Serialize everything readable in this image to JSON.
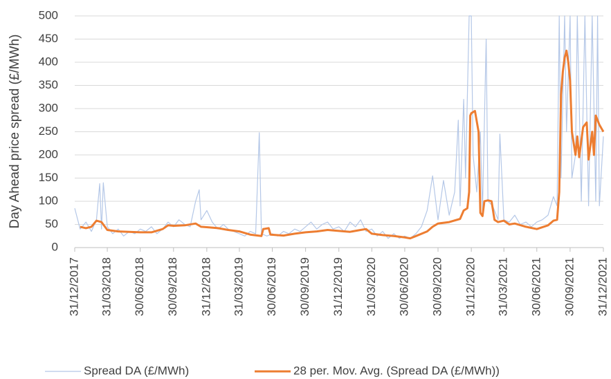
{
  "chart_data": {
    "type": "line",
    "y_label": "Day Ahead price spread (£/MWh)",
    "xlim": [
      "31/12/2017",
      "31/12/2021"
    ],
    "xticks": [
      "31/12/2017",
      "31/03/2018",
      "30/06/2018",
      "30/09/2018",
      "31/12/2018",
      "31/03/2019",
      "30/06/2019",
      "30/09/2019",
      "31/12/2019",
      "31/03/2020",
      "30/06/2020",
      "30/09/2020",
      "31/12/2020",
      "31/03/2021",
      "30/06/2021",
      "30/09/2021",
      "31/12/2021"
    ],
    "ylim": [
      0,
      500
    ],
    "yticks": [
      0,
      50,
      100,
      150,
      200,
      250,
      300,
      350,
      400,
      450,
      500
    ],
    "grid": true,
    "series": [
      {
        "name": "Spread DA (£/MWh)",
        "color": "#b4c7e7",
        "width": 1.2,
        "x": [
          "31/12/2017",
          "15/01/2018",
          "31/01/2018",
          "15/02/2018",
          "01/03/2018",
          "10/03/2018",
          "15/03/2018",
          "20/03/2018",
          "31/03/2018",
          "15/04/2018",
          "30/04/2018",
          "15/05/2018",
          "31/05/2018",
          "15/06/2018",
          "30/06/2018",
          "15/07/2018",
          "31/07/2018",
          "15/08/2018",
          "31/08/2018",
          "15/09/2018",
          "30/09/2018",
          "15/10/2018",
          "31/10/2018",
          "15/11/2018",
          "30/11/2018",
          "10/12/2018",
          "15/12/2018",
          "31/12/2018",
          "15/01/2019",
          "31/01/2019",
          "15/02/2019",
          "28/02/2019",
          "15/03/2019",
          "31/03/2019",
          "15/04/2019",
          "30/04/2019",
          "15/05/2019",
          "25/05/2019",
          "31/05/2019",
          "15/06/2019",
          "30/06/2019",
          "15/07/2019",
          "31/07/2019",
          "15/08/2019",
          "31/08/2019",
          "15/09/2019",
          "30/09/2019",
          "15/10/2019",
          "31/10/2019",
          "15/11/2019",
          "30/11/2019",
          "15/12/2019",
          "31/12/2019",
          "15/01/2020",
          "31/01/2020",
          "15/02/2020",
          "29/02/2020",
          "15/03/2020",
          "31/03/2020",
          "15/04/2020",
          "30/04/2020",
          "15/05/2020",
          "31/05/2020",
          "15/06/2020",
          "30/06/2020",
          "15/07/2020",
          "31/07/2020",
          "15/08/2020",
          "31/08/2020",
          "15/09/2020",
          "30/09/2020",
          "15/10/2020",
          "31/10/2020",
          "15/11/2020",
          "25/11/2020",
          "30/11/2020",
          "10/12/2020",
          "15/12/2020",
          "25/12/2020",
          "31/12/2020",
          "05/01/2021",
          "15/01/2021",
          "25/01/2021",
          "31/01/2021",
          "10/02/2021",
          "15/02/2021",
          "28/02/2021",
          "15/03/2021",
          "20/03/2021",
          "31/03/2021",
          "15/04/2021",
          "30/04/2021",
          "15/05/2021",
          "31/05/2021",
          "15/06/2021",
          "30/06/2021",
          "15/07/2021",
          "31/07/2021",
          "15/08/2021",
          "25/08/2021",
          "31/08/2021",
          "05/09/2021",
          "15/09/2021",
          "20/09/2021",
          "30/09/2021",
          "05/10/2021",
          "15/10/2021",
          "20/10/2021",
          "31/10/2021",
          "10/11/2021",
          "20/11/2021",
          "30/11/2021",
          "10/12/2021",
          "15/12/2021",
          "20/12/2021",
          "31/12/2021"
        ],
        "values": [
          85,
          40,
          55,
          35,
          60,
          138,
          40,
          140,
          45,
          30,
          40,
          25,
          35,
          30,
          40,
          35,
          45,
          30,
          40,
          55,
          45,
          60,
          50,
          45,
          100,
          125,
          60,
          80,
          55,
          40,
          50,
          40,
          35,
          30,
          25,
          35,
          30,
          248,
          30,
          25,
          30,
          25,
          35,
          30,
          40,
          35,
          45,
          55,
          40,
          50,
          55,
          40,
          45,
          35,
          55,
          45,
          60,
          35,
          40,
          25,
          35,
          20,
          30,
          20,
          25,
          20,
          30,
          45,
          80,
          155,
          60,
          145,
          70,
          120,
          275,
          90,
          320,
          150,
          500,
          500,
          200,
          120,
          250,
          80,
          450,
          100,
          90,
          60,
          245,
          60,
          55,
          70,
          50,
          55,
          45,
          55,
          60,
          70,
          110,
          90,
          500,
          150,
          500,
          250,
          500,
          150,
          200,
          500,
          100,
          500,
          90,
          500,
          100,
          500,
          90,
          240
        ]
      },
      {
        "name": "28 per. Mov. Avg. (Spread DA (£/MWh))",
        "color": "#ed7d31",
        "width": 3,
        "x": [
          "15/01/2018",
          "31/01/2018",
          "15/02/2018",
          "01/03/2018",
          "15/03/2018",
          "31/03/2018",
          "30/04/2018",
          "30/06/2018",
          "31/07/2018",
          "31/08/2018",
          "15/09/2018",
          "30/09/2018",
          "31/10/2018",
          "30/11/2018",
          "15/12/2018",
          "31/12/2018",
          "31/01/2019",
          "28/02/2019",
          "31/03/2019",
          "30/04/2019",
          "31/05/2019",
          "05/06/2019",
          "20/06/2019",
          "25/06/2019",
          "31/07/2019",
          "31/08/2019",
          "30/09/2019",
          "31/10/2019",
          "30/11/2019",
          "31/12/2019",
          "31/01/2020",
          "29/02/2020",
          "15/03/2020",
          "31/03/2020",
          "30/04/2020",
          "31/05/2020",
          "30/06/2020",
          "15/07/2020",
          "31/07/2020",
          "31/08/2020",
          "15/09/2020",
          "30/09/2020",
          "31/10/2020",
          "30/11/2020",
          "10/12/2020",
          "20/12/2020",
          "25/12/2020",
          "28/12/2020",
          "31/12/2020",
          "10/01/2021",
          "20/01/2021",
          "25/01/2021",
          "31/01/2021",
          "05/02/2021",
          "15/02/2021",
          "25/02/2021",
          "05/03/2021",
          "15/03/2021",
          "31/03/2021",
          "15/04/2021",
          "30/04/2021",
          "31/05/2021",
          "30/06/2021",
          "31/07/2021",
          "15/08/2021",
          "25/08/2021",
          "31/08/2021",
          "05/09/2021",
          "10/09/2021",
          "15/09/2021",
          "20/09/2021",
          "25/09/2021",
          "30/09/2021",
          "05/10/2021",
          "15/10/2021",
          "20/10/2021",
          "25/10/2021",
          "05/11/2021",
          "15/11/2021",
          "20/11/2021",
          "30/11/2021",
          "05/12/2021",
          "10/12/2021",
          "20/12/2021",
          "31/12/2021"
        ],
        "values": [
          45,
          42,
          45,
          58,
          55,
          38,
          35,
          33,
          33,
          40,
          48,
          47,
          48,
          52,
          45,
          44,
          42,
          38,
          35,
          28,
          25,
          40,
          42,
          28,
          26,
          30,
          33,
          35,
          38,
          36,
          34,
          38,
          40,
          30,
          27,
          25,
          22,
          20,
          25,
          35,
          45,
          52,
          55,
          62,
          80,
          85,
          120,
          285,
          290,
          295,
          250,
          75,
          68,
          100,
          102,
          100,
          60,
          55,
          58,
          50,
          52,
          45,
          40,
          48,
          58,
          60,
          120,
          330,
          380,
          410,
          425,
          400,
          360,
          250,
          200,
          240,
          195,
          260,
          270,
          190,
          250,
          200,
          285,
          265,
          250
        ]
      }
    ]
  }
}
